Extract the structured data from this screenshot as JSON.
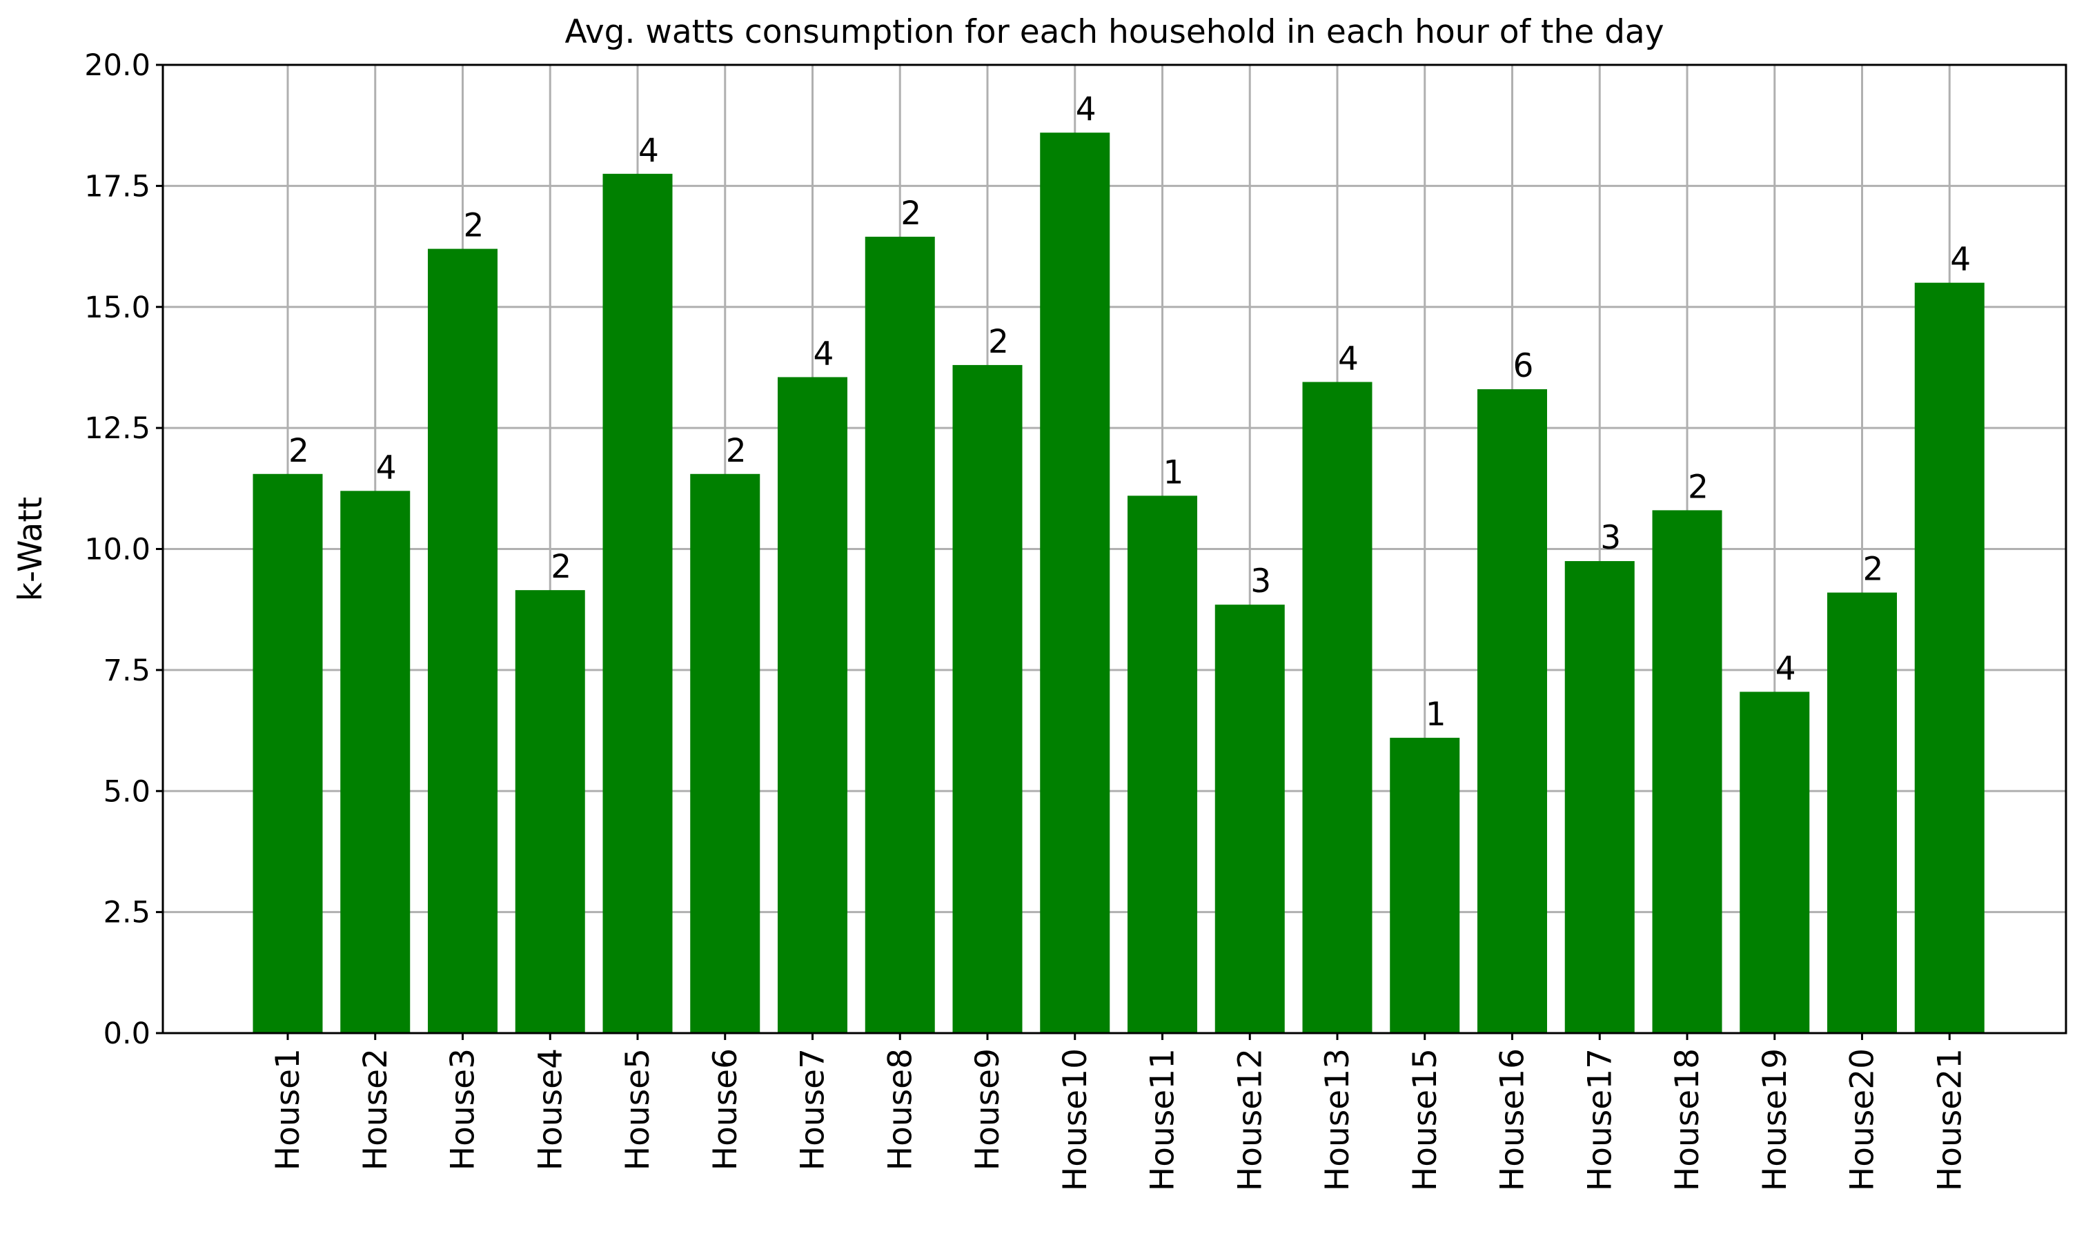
{
  "chart_data": {
    "type": "bar",
    "title": "Avg. watts consumption for each household in each hour of the day",
    "xlabel": "",
    "ylabel": "k-Watt",
    "ylim": [
      0,
      20
    ],
    "yticks": [
      "0.0",
      "2.5",
      "5.0",
      "7.5",
      "10.0",
      "12.5",
      "15.0",
      "17.5",
      "20.0"
    ],
    "ytick_values": [
      0,
      2.5,
      5,
      7.5,
      10,
      12.5,
      15,
      17.5,
      20
    ],
    "grid": true,
    "bar_color": "#008000",
    "categories": [
      "House1",
      "House2",
      "House3",
      "House4",
      "House5",
      "House6",
      "House7",
      "House8",
      "House9",
      "House10",
      "House11",
      "House12",
      "House13",
      "House15",
      "House16",
      "House17",
      "House18",
      "House19",
      "House20",
      "House21"
    ],
    "values": [
      11.55,
      11.2,
      16.2,
      9.15,
      17.75,
      11.55,
      13.55,
      16.45,
      13.8,
      18.6,
      11.1,
      8.85,
      13.45,
      6.1,
      13.3,
      9.75,
      10.8,
      7.05,
      9.1,
      15.5
    ],
    "bar_labels": [
      "2",
      "4",
      "2",
      "2",
      "4",
      "2",
      "4",
      "2",
      "2",
      "4",
      "1",
      "3",
      "4",
      "1",
      "6",
      "3",
      "2",
      "4",
      "2",
      "4"
    ]
  }
}
